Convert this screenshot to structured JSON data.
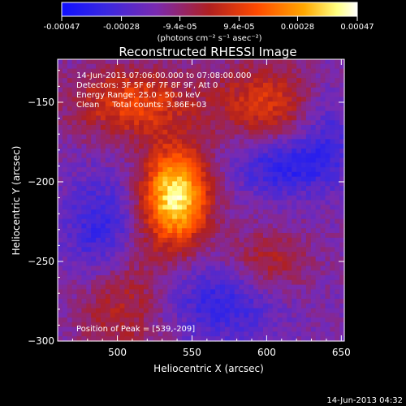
{
  "chart_data": {
    "type": "heatmap",
    "title": "Reconstructed RHESSI Image",
    "xlabel": "Heliocentric X (arcsec)",
    "ylabel": "Heliocentric Y (arcsec)",
    "xlim": [
      460,
      652
    ],
    "ylim": [
      -300,
      -123
    ],
    "x_ticks": [
      500,
      550,
      600,
      650
    ],
    "y_ticks": [
      -150,
      -200,
      -250,
      -300
    ],
    "colorbar": {
      "range": [
        -0.00047,
        0.00047
      ],
      "tick_values": [
        -0.00047,
        -0.00028,
        -9.4e-05,
        9.4e-05,
        0.00028,
        0.00047
      ],
      "tick_labels": [
        "-0.00047",
        "-0.00028",
        "-9.4e-05",
        "9.4e-05",
        "0.00028",
        "0.00047"
      ],
      "unit_label": "(photons cm⁻² s⁻¹ asec⁻²)",
      "colormap": [
        "#1010ff",
        "#6030c0",
        "#a02020",
        "#ff4000",
        "#ffa000",
        "#ffff80",
        "#ffffff"
      ]
    },
    "annotations": [
      "14-Jun-2013 07:06:00.000 to 07:08:00.000",
      "Detectors: 3F 5F 6F 7F 8F 9F, Att 0",
      "Energy Range: 25.0 - 50.0 keV",
      "Clean     Total counts: 3.86E+03"
    ],
    "peak_label": "Position of Peak = [539,-209]",
    "peak": [
      539,
      -209
    ]
  },
  "footer_timestamp": "14-Jun-2013 04:32"
}
